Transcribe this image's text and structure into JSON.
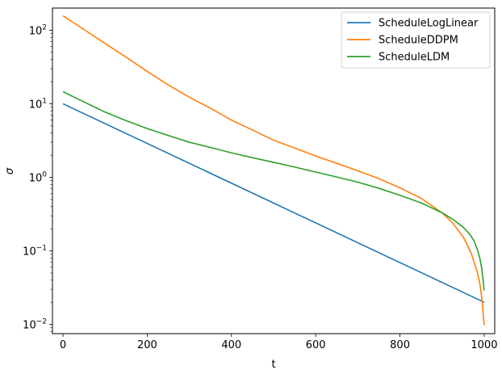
{
  "chart_data": {
    "type": "line",
    "title": "",
    "xlabel": "t",
    "ylabel": "σ",
    "yscale": "log",
    "xlim": [
      -25,
      1025
    ],
    "ylim": [
      0.0075,
      200
    ],
    "x_ticks": [
      0,
      200,
      400,
      600,
      800,
      1000
    ],
    "x_tick_labels": [
      "0",
      "200",
      "400",
      "600",
      "800",
      "1000"
    ],
    "y_ticks": [
      0.01,
      0.1,
      1,
      10,
      100
    ],
    "y_tick_labels": [
      {
        "base": "10",
        "exp": "−2"
      },
      {
        "base": "10",
        "exp": "−1"
      },
      {
        "base": "10",
        "exp": "0"
      },
      {
        "base": "10",
        "exp": "1"
      },
      {
        "base": "10",
        "exp": "2"
      }
    ],
    "grid": false,
    "legend_position": "top-right",
    "series": [
      {
        "name": "ScheduleLogLinear",
        "color": "#1f77b4",
        "x": [
          0,
          1000
        ],
        "y": [
          10,
          0.02
        ]
      },
      {
        "name": "ScheduleDDPM",
        "color": "#ff7f0e",
        "x": [
          0,
          50,
          100,
          150,
          200,
          250,
          300,
          350,
          400,
          450,
          500,
          550,
          600,
          650,
          700,
          750,
          800,
          850,
          900,
          925,
          950,
          960,
          970,
          980,
          985,
          990,
          993,
          996,
          998,
          1000
        ],
        "y": [
          157,
          102,
          66,
          43,
          27.5,
          18,
          12.3,
          8.7,
          6.0,
          4.4,
          3.2,
          2.5,
          1.95,
          1.55,
          1.23,
          0.96,
          0.72,
          0.52,
          0.33,
          0.24,
          0.155,
          0.12,
          0.09,
          0.06,
          0.048,
          0.035,
          0.026,
          0.018,
          0.013,
          0.0098
        ]
      },
      {
        "name": "ScheduleLDM",
        "color": "#2ca02c",
        "x": [
          0,
          50,
          100,
          150,
          200,
          250,
          300,
          350,
          400,
          450,
          500,
          550,
          600,
          650,
          700,
          750,
          800,
          850,
          900,
          925,
          950,
          965,
          975,
          985,
          990,
          994,
          997,
          1000
        ],
        "y": [
          14.6,
          10.6,
          7.7,
          5.9,
          4.6,
          3.7,
          3.0,
          2.55,
          2.15,
          1.85,
          1.6,
          1.38,
          1.18,
          1.01,
          0.86,
          0.71,
          0.57,
          0.45,
          0.33,
          0.27,
          0.21,
          0.17,
          0.14,
          0.1,
          0.078,
          0.058,
          0.042,
          0.029
        ]
      }
    ]
  }
}
